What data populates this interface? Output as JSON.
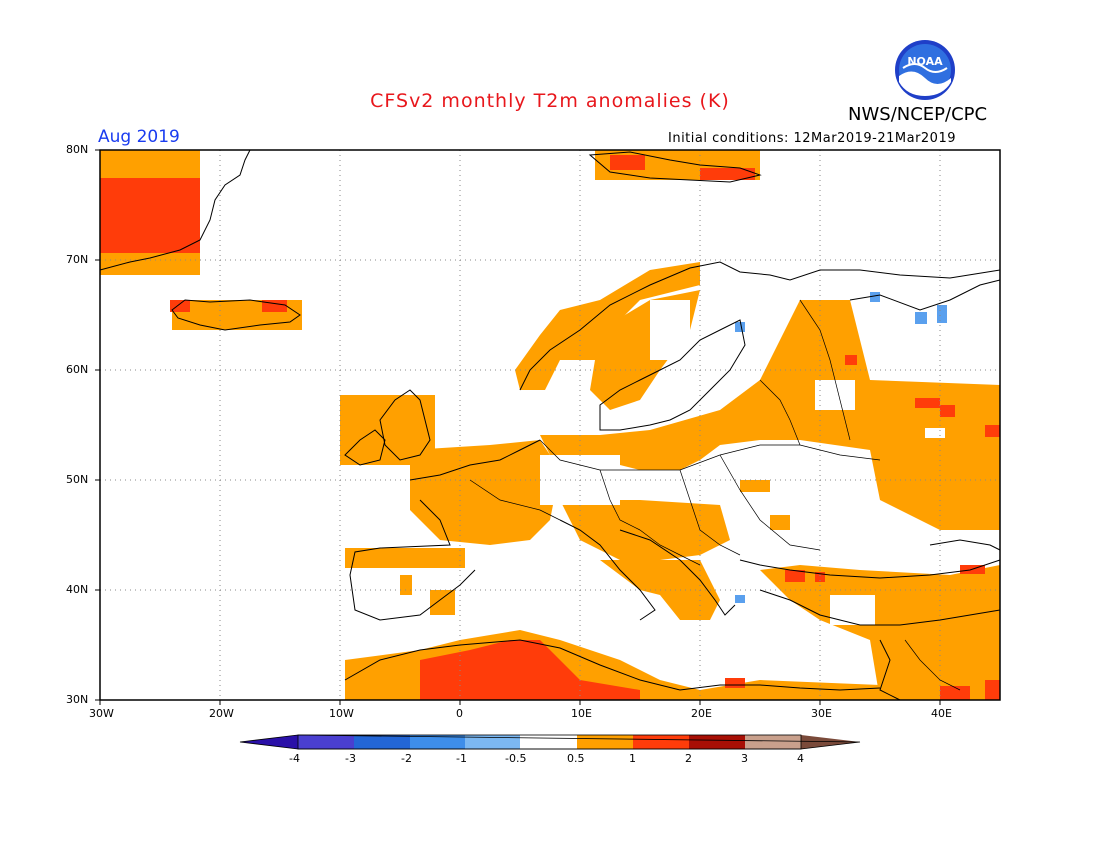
{
  "header": {
    "title": "CFSv2 monthly T2m anomalies (K)",
    "agency": "NWS/NCEP/CPC",
    "month": "Aug 2019",
    "initial_conditions": "Initial conditions: 12Mar2019-21Mar2019",
    "logo_text": "NOAA"
  },
  "axes": {
    "lat_labels": [
      "80N",
      "70N",
      "60N",
      "50N",
      "40N",
      "30N"
    ],
    "lon_labels": [
      "30W",
      "20W",
      "10W",
      "0",
      "10E",
      "20E",
      "30E",
      "40E"
    ]
  },
  "colorbar": {
    "labels": [
      "-4",
      "-3",
      "-2",
      "-1",
      "-0.5",
      "0.5",
      "1",
      "2",
      "3",
      "4"
    ],
    "colors": [
      "#2a10a8",
      "#4a3fd0",
      "#2366d6",
      "#3e8eea",
      "#7cb8f2",
      "#ffffff",
      "#ffa000",
      "#ff3c0a",
      "#a80f05",
      "#c9a08c",
      "#7a4a3a"
    ]
  },
  "anomaly_colors": {
    "above_0_5": "#ffa000",
    "above_1": "#ff3c0a",
    "below_minus_0_5": "#7cb8f2",
    "below_minus_1": "#3e8eea"
  }
}
